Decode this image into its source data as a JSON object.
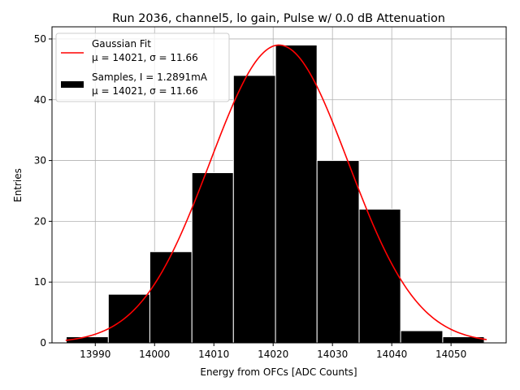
{
  "chart_data": {
    "type": "bar",
    "title": "Run 2036, channel5, lo gain, Pulse w/ 0.0 dB Attenuation",
    "xlabel": "Energy from OFCs [ADC Counts]",
    "ylabel": "Entries",
    "xlim": [
      13982.7,
      14059.3
    ],
    "ylim": [
      0,
      52
    ],
    "grid": true,
    "xticks": [
      13990,
      14000,
      14010,
      14020,
      14030,
      14040,
      14050
    ],
    "yticks": [
      0,
      10,
      20,
      30,
      40,
      50
    ],
    "histogram": {
      "bin_edges": [
        13985.1,
        13992.2,
        13999.2,
        14006.3,
        14013.3,
        14020.4,
        14027.4,
        14034.5,
        14041.5,
        14048.6,
        14055.6
      ],
      "counts": [
        1,
        8,
        15,
        28,
        44,
        49,
        30,
        22,
        2,
        1
      ],
      "color": "#000000",
      "edgecolor": "#ffffff"
    },
    "gaussian_fit": {
      "mu": 14021,
      "sigma": 11.66,
      "peak": 49,
      "x_range": [
        13985,
        14056
      ],
      "color": "#ff0000"
    },
    "legend": {
      "placement": "top-left",
      "entries": [
        {
          "line1": "Gaussian Fit",
          "line2": "μ = 14021, σ = 11.66",
          "marker": "line",
          "color": "#ff0000"
        },
        {
          "line1": "Samples, I = 1.2891mA",
          "line2": "μ = 14021, σ = 11.66",
          "marker": "patch",
          "color": "#000000"
        }
      ]
    }
  }
}
